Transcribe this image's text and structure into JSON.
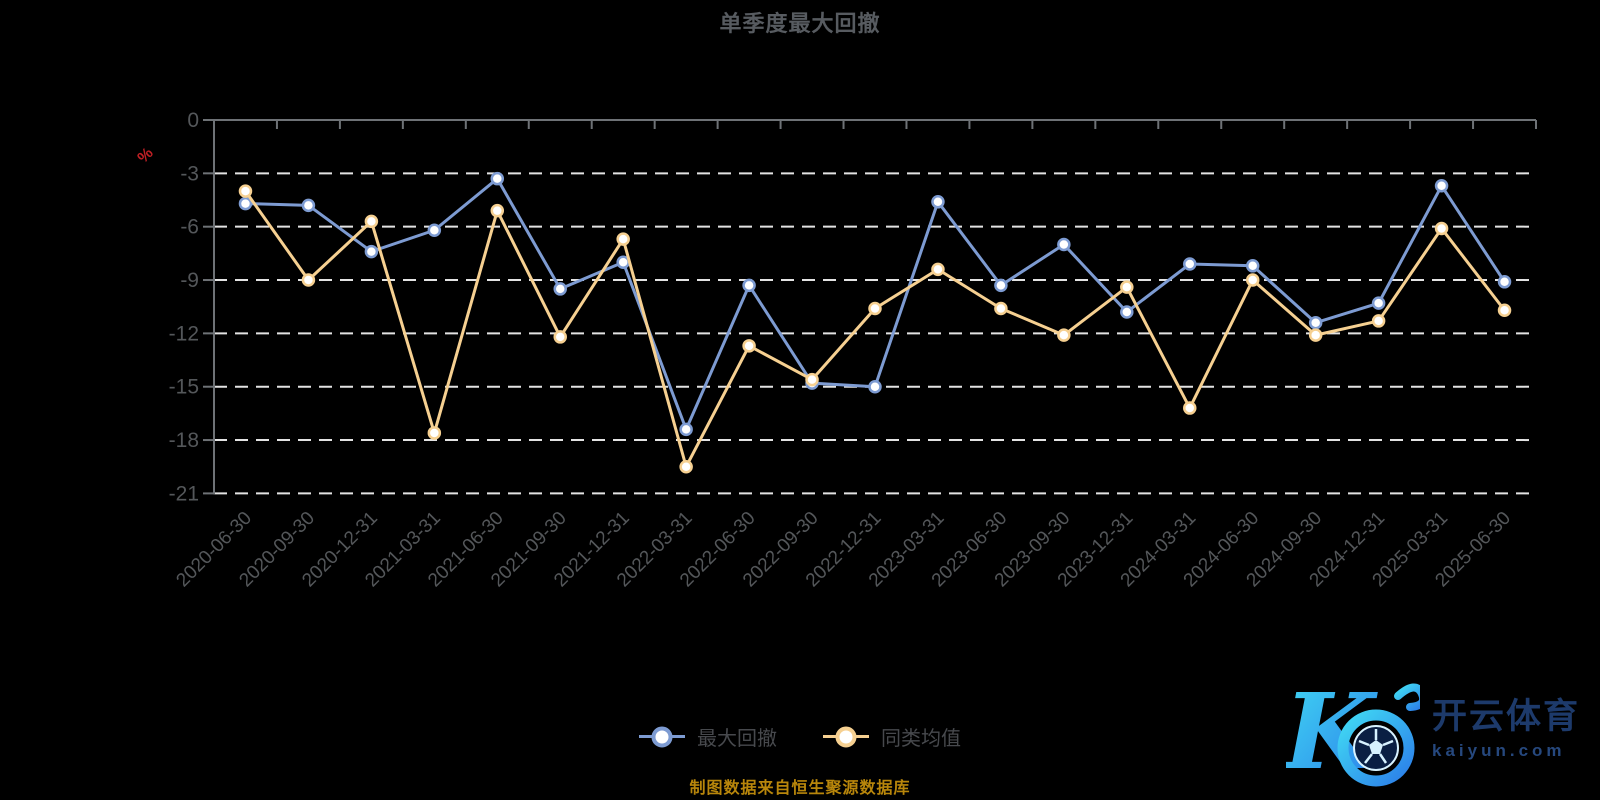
{
  "title": "单季度最大回撤",
  "source_note": "制图数据来自恒生聚源数据库",
  "y_axis": {
    "unit": "%",
    "tick_labels": [
      "0",
      "-3",
      "-6",
      "-9",
      "-12",
      "-15",
      "-18",
      "-21"
    ]
  },
  "legend": {
    "items": [
      {
        "label": "最大回撤",
        "color": "#7d9bd2"
      },
      {
        "label": "同类均值",
        "color": "#f6d091"
      }
    ]
  },
  "watermark": {
    "brand": "开云体育",
    "domain": "kaiyun.com"
  },
  "colors": {
    "background": "#000000",
    "axis_line": "#6e7276",
    "gridline": "#e3e3e3",
    "axis_label": "#54575a",
    "title": "#575b60",
    "unit_label": "#c22025",
    "source_note": "#b8860b",
    "series_max_drawdown": "#7d9bd2",
    "series_category_avg": "#f6d091",
    "marker_fill": "#ffffff"
  },
  "chart_data": {
    "type": "line",
    "title": "单季度最大回撤",
    "xlabel": "",
    "ylabel": "%",
    "ylim": [
      -21,
      0
    ],
    "yticks": [
      0,
      -3,
      -6,
      -9,
      -12,
      -15,
      -18,
      -21
    ],
    "grid": "horizontal-dashed",
    "legend_position": "bottom",
    "categories": [
      "2020-06-30",
      "2020-09-30",
      "2020-12-31",
      "2021-03-31",
      "2021-06-30",
      "2021-09-30",
      "2021-12-31",
      "2022-03-31",
      "2022-06-30",
      "2022-09-30",
      "2022-12-31",
      "2023-03-31",
      "2023-06-30",
      "2023-09-30",
      "2023-12-31",
      "2024-03-31",
      "2024-06-30",
      "2024-09-30",
      "2024-12-31",
      "2025-03-31",
      "2025-06-30"
    ],
    "series": [
      {
        "name": "最大回撤",
        "color": "#7d9bd2",
        "marker": "circle-white-fill",
        "values": [
          -4.7,
          -4.8,
          -7.4,
          -6.2,
          -3.3,
          -9.5,
          -8.0,
          -17.4,
          -9.3,
          -14.8,
          -15.0,
          -4.6,
          -9.3,
          -7.0,
          -10.8,
          -8.1,
          -8.2,
          -11.4,
          -10.3,
          -3.7,
          -9.1
        ]
      },
      {
        "name": "同类均值",
        "color": "#f6d091",
        "marker": "circle-white-fill",
        "values": [
          -4.0,
          -9.0,
          -5.7,
          -17.6,
          -5.1,
          -12.2,
          -6.7,
          -19.5,
          -12.7,
          -14.6,
          -10.6,
          -8.4,
          -10.6,
          -12.1,
          -9.4,
          -16.2,
          -9.0,
          -12.1,
          -11.3,
          -6.1,
          -10.7
        ]
      }
    ]
  }
}
